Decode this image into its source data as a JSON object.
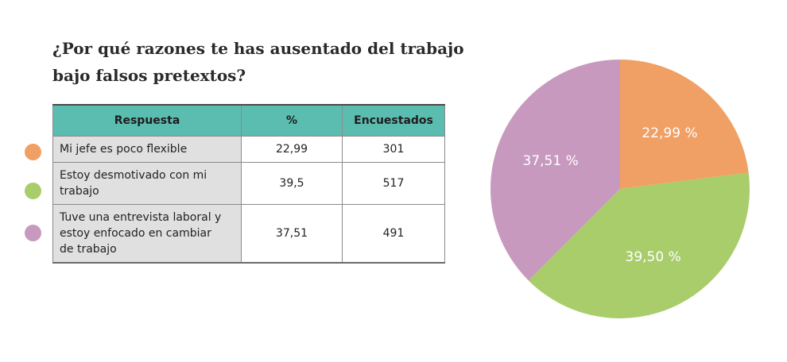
{
  "title_line1": "¿Por qué razones te has ausentado del trabajo",
  "title_line2": "bajo falsos pretextos?",
  "table": {
    "headers": [
      "Respuesta",
      "%",
      "Encuestados"
    ],
    "rows": [
      {
        "lines": [
          "Mi jefe es poco flexible"
        ],
        "pct": "22,99",
        "count": "301"
      },
      {
        "lines": [
          "Estoy desmotivado con mi",
          "trabajo"
        ],
        "pct": "39,5",
        "count": "517"
      },
      {
        "lines": [
          "Tuve una entrevista laboral y",
          "estoy enfocado en cambiar",
          "de trabajo"
        ],
        "pct": "37,51",
        "count": "491"
      }
    ]
  },
  "colors": {
    "header": "#5bbcb0",
    "orange": "#f0a065",
    "green": "#a8cd6a",
    "purple": "#c899bf"
  },
  "chart_data": {
    "type": "pie",
    "title": "¿Por qué razones te has ausentado del trabajo bajo falsos pretextos?",
    "categories": [
      "Mi jefe es poco flexible",
      "Estoy desmotivado con mi trabajo",
      "Tuve una entrevista laboral y estoy enfocado en cambiar de trabajo"
    ],
    "values": [
      22.99,
      39.5,
      37.51
    ],
    "labels": [
      "22,99 %",
      "39,50 %",
      "37,51 %"
    ],
    "colors": [
      "#f0a065",
      "#a8cd6a",
      "#c899bf"
    ],
    "legend": "left"
  }
}
